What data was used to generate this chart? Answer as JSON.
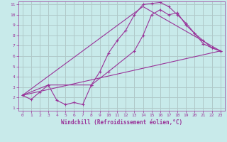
{
  "title": "",
  "xlabel": "Windchill (Refroidissement éolien,°C)",
  "bg_color": "#c8eaea",
  "grid_color": "#b0c8c8",
  "line_color": "#993399",
  "xlim": [
    -0.5,
    23.5
  ],
  "ylim": [
    0.7,
    11.3
  ],
  "xticks": [
    0,
    1,
    2,
    3,
    4,
    5,
    6,
    7,
    8,
    9,
    10,
    11,
    12,
    13,
    14,
    15,
    16,
    17,
    18,
    19,
    20,
    21,
    22,
    23
  ],
  "yticks": [
    1,
    2,
    3,
    4,
    5,
    6,
    7,
    8,
    9,
    10,
    11
  ],
  "series1_x": [
    0,
    1,
    2,
    3,
    4,
    5,
    6,
    7,
    8,
    9,
    10,
    11,
    12,
    13,
    14,
    15,
    16,
    17,
    18,
    19,
    20,
    21,
    22,
    23
  ],
  "series1_y": [
    2.2,
    1.8,
    2.5,
    3.2,
    1.7,
    1.3,
    1.5,
    1.3,
    3.2,
    4.5,
    6.3,
    7.5,
    8.5,
    10.0,
    11.0,
    11.1,
    11.2,
    10.8,
    10.0,
    9.2,
    8.2,
    7.2,
    6.8,
    6.5
  ],
  "series2_x": [
    0,
    3,
    8,
    10,
    13,
    14,
    15,
    16,
    17,
    18,
    19,
    20,
    21,
    22,
    23
  ],
  "series2_y": [
    2.2,
    3.2,
    3.2,
    4.5,
    6.5,
    8.0,
    10.0,
    10.5,
    10.0,
    10.2,
    9.0,
    8.2,
    7.5,
    6.8,
    6.5
  ],
  "series3_x": [
    0,
    23
  ],
  "series3_y": [
    2.2,
    6.5
  ],
  "series4_x": [
    0,
    14,
    23
  ],
  "series4_y": [
    2.2,
    10.8,
    6.5
  ]
}
